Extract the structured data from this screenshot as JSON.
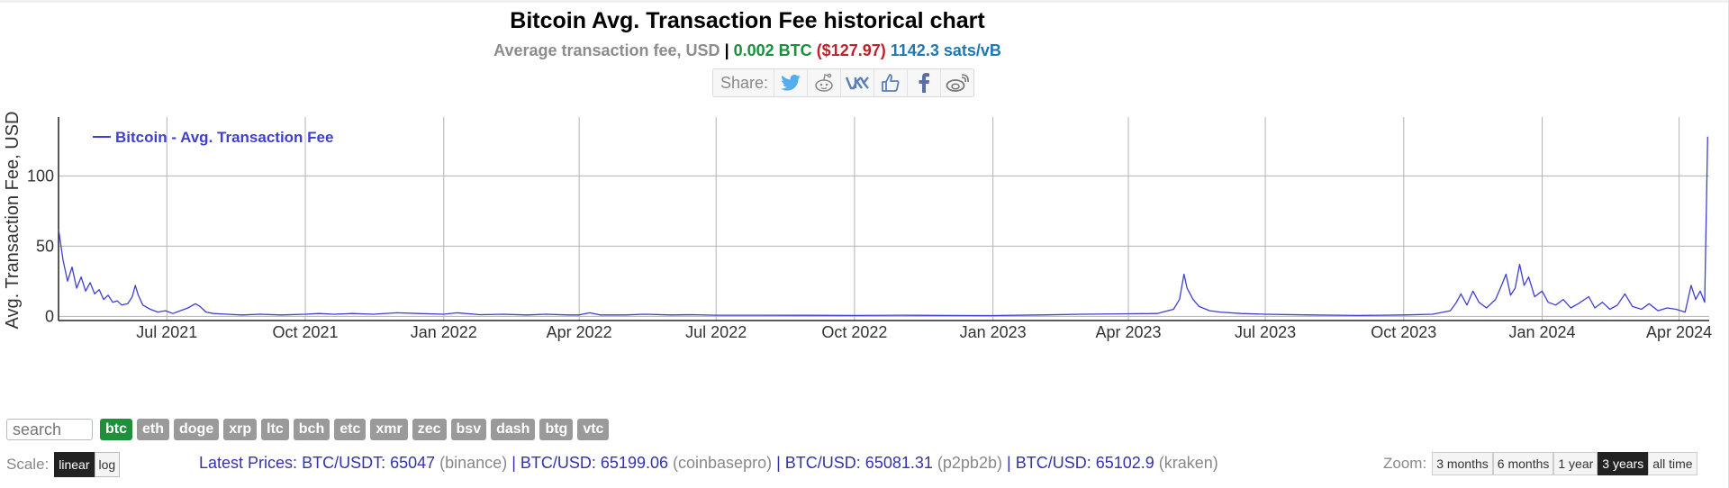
{
  "page": {
    "title": "Bitcoin Avg. Transaction Fee historical chart",
    "subtitle": {
      "label": "Average transaction fee, USD",
      "sep": "|",
      "btc": "0.002 BTC",
      "usd": "($127.97)",
      "sats": "1142.3 sats/vB"
    },
    "share_label": "Share:",
    "share_icons": [
      "twitter-icon",
      "reddit-icon",
      "vk-icon",
      "like-icon",
      "facebook-icon",
      "weibo-icon"
    ]
  },
  "chart_data": {
    "type": "line",
    "title": "",
    "xlabel": "",
    "ylabel": "Avg. Transaction Fee, USD",
    "legend": "Bitcoin - Avg. Transaction Fee",
    "legend_position": "top-left",
    "grid": true,
    "line_color": "#3f3fd0",
    "ylim": [
      -3,
      140
    ],
    "yticks": [
      0,
      50,
      100
    ],
    "x_range": [
      "2021-04-20",
      "2024-04-21"
    ],
    "xticks": [
      {
        "date": "2021-07-01",
        "label": "Jul 2021"
      },
      {
        "date": "2021-10-01",
        "label": "Oct 2021"
      },
      {
        "date": "2022-01-01",
        "label": "Jan 2022"
      },
      {
        "date": "2022-04-01",
        "label": "Apr 2022"
      },
      {
        "date": "2022-07-01",
        "label": "Jul 2022"
      },
      {
        "date": "2022-10-01",
        "label": "Oct 2022"
      },
      {
        "date": "2023-01-01",
        "label": "Jan 2023"
      },
      {
        "date": "2023-04-01",
        "label": "Apr 2023"
      },
      {
        "date": "2023-07-01",
        "label": "Jul 2023"
      },
      {
        "date": "2023-10-01",
        "label": "Oct 2023"
      },
      {
        "date": "2024-01-01",
        "label": "Jan 2024"
      },
      {
        "date": "2024-04-01",
        "label": "Apr 2024"
      }
    ],
    "series": [
      {
        "name": "Bitcoin - Avg. Transaction Fee",
        "points": [
          [
            "2021-04-20",
            62
          ],
          [
            "2021-04-23",
            40
          ],
          [
            "2021-04-26",
            25
          ],
          [
            "2021-04-29",
            35
          ],
          [
            "2021-05-02",
            20
          ],
          [
            "2021-05-05",
            28
          ],
          [
            "2021-05-08",
            18
          ],
          [
            "2021-05-11",
            24
          ],
          [
            "2021-05-14",
            16
          ],
          [
            "2021-05-17",
            19
          ],
          [
            "2021-05-20",
            12
          ],
          [
            "2021-05-23",
            15
          ],
          [
            "2021-05-26",
            10
          ],
          [
            "2021-05-29",
            11
          ],
          [
            "2021-06-01",
            8
          ],
          [
            "2021-06-05",
            9
          ],
          [
            "2021-06-08",
            14
          ],
          [
            "2021-06-10",
            22
          ],
          [
            "2021-06-12",
            15
          ],
          [
            "2021-06-15",
            8
          ],
          [
            "2021-06-20",
            5
          ],
          [
            "2021-06-25",
            3
          ],
          [
            "2021-06-30",
            4
          ],
          [
            "2021-07-05",
            2
          ],
          [
            "2021-07-10",
            4
          ],
          [
            "2021-07-15",
            6
          ],
          [
            "2021-07-20",
            9
          ],
          [
            "2021-07-23",
            7
          ],
          [
            "2021-07-27",
            3
          ],
          [
            "2021-08-01",
            2
          ],
          [
            "2021-08-10",
            1.5
          ],
          [
            "2021-08-20",
            1
          ],
          [
            "2021-09-01",
            1.5
          ],
          [
            "2021-09-15",
            1
          ],
          [
            "2021-10-01",
            1.5
          ],
          [
            "2021-10-10",
            2
          ],
          [
            "2021-10-20",
            1.5
          ],
          [
            "2021-11-01",
            2
          ],
          [
            "2021-11-15",
            1.5
          ],
          [
            "2021-12-01",
            2.5
          ],
          [
            "2021-12-15",
            2
          ],
          [
            "2022-01-01",
            1.5
          ],
          [
            "2022-01-10",
            2.5
          ],
          [
            "2022-01-25",
            1.2
          ],
          [
            "2022-02-10",
            1.5
          ],
          [
            "2022-02-25",
            1
          ],
          [
            "2022-03-10",
            1.5
          ],
          [
            "2022-03-25",
            1
          ],
          [
            "2022-04-01",
            1
          ],
          [
            "2022-04-08",
            2.5
          ],
          [
            "2022-04-15",
            1
          ],
          [
            "2022-05-01",
            1
          ],
          [
            "2022-05-15",
            1.5
          ],
          [
            "2022-06-01",
            1
          ],
          [
            "2022-06-15",
            1.2
          ],
          [
            "2022-07-01",
            0.8
          ],
          [
            "2022-08-01",
            0.8
          ],
          [
            "2022-09-01",
            0.7
          ],
          [
            "2022-10-01",
            0.6
          ],
          [
            "2022-11-01",
            0.8
          ],
          [
            "2022-12-01",
            0.6
          ],
          [
            "2023-01-01",
            0.5
          ],
          [
            "2023-02-01",
            1
          ],
          [
            "2023-03-01",
            1.5
          ],
          [
            "2023-04-01",
            1.8
          ],
          [
            "2023-04-20",
            2
          ],
          [
            "2023-05-01",
            5
          ],
          [
            "2023-05-05",
            12
          ],
          [
            "2023-05-08",
            30
          ],
          [
            "2023-05-10",
            20
          ],
          [
            "2023-05-14",
            12
          ],
          [
            "2023-05-18",
            7
          ],
          [
            "2023-05-25",
            4
          ],
          [
            "2023-06-01",
            3
          ],
          [
            "2023-06-15",
            2
          ],
          [
            "2023-07-01",
            1.5
          ],
          [
            "2023-08-01",
            1
          ],
          [
            "2023-09-01",
            0.6
          ],
          [
            "2023-10-01",
            1
          ],
          [
            "2023-10-20",
            1.5
          ],
          [
            "2023-11-01",
            4
          ],
          [
            "2023-11-05",
            10
          ],
          [
            "2023-11-08",
            16
          ],
          [
            "2023-11-12",
            8
          ],
          [
            "2023-11-16",
            18
          ],
          [
            "2023-11-20",
            10
          ],
          [
            "2023-11-25",
            6
          ],
          [
            "2023-12-01",
            12
          ],
          [
            "2023-12-05",
            22
          ],
          [
            "2023-12-08",
            30
          ],
          [
            "2023-12-11",
            15
          ],
          [
            "2023-12-14",
            20
          ],
          [
            "2023-12-17",
            37
          ],
          [
            "2023-12-20",
            22
          ],
          [
            "2023-12-23",
            28
          ],
          [
            "2023-12-27",
            14
          ],
          [
            "2024-01-01",
            18
          ],
          [
            "2024-01-05",
            10
          ],
          [
            "2024-01-10",
            8
          ],
          [
            "2024-01-15",
            12
          ],
          [
            "2024-01-20",
            6
          ],
          [
            "2024-01-25",
            9
          ],
          [
            "2024-02-01",
            14
          ],
          [
            "2024-02-05",
            6
          ],
          [
            "2024-02-10",
            10
          ],
          [
            "2024-02-15",
            5
          ],
          [
            "2024-02-20",
            8
          ],
          [
            "2024-02-25",
            16
          ],
          [
            "2024-03-01",
            7
          ],
          [
            "2024-03-07",
            5
          ],
          [
            "2024-03-12",
            9
          ],
          [
            "2024-03-18",
            4
          ],
          [
            "2024-03-24",
            6
          ],
          [
            "2024-03-30",
            5
          ],
          [
            "2024-04-05",
            3
          ],
          [
            "2024-04-09",
            22
          ],
          [
            "2024-04-12",
            12
          ],
          [
            "2024-04-15",
            18
          ],
          [
            "2024-04-18",
            10
          ],
          [
            "2024-04-20",
            128
          ]
        ]
      }
    ]
  },
  "controls": {
    "search_placeholder": "search",
    "coins": [
      "btc",
      "eth",
      "doge",
      "xrp",
      "ltc",
      "bch",
      "etc",
      "xmr",
      "zec",
      "bsv",
      "dash",
      "btg",
      "vtc"
    ],
    "active_coin": "btc",
    "scale_label": "Scale:",
    "scale_linear": "linear",
    "scale_log": "log",
    "zoom_label": "Zoom:",
    "zoom_3m": "3 months",
    "zoom_6m": "6 months",
    "zoom_1y": "1 year",
    "zoom_3y": "3 years",
    "zoom_all": "all time"
  },
  "prices": {
    "label": "Latest Prices:",
    "items": [
      {
        "pair": "BTC/USDT: 65047",
        "exchange": "(binance)"
      },
      {
        "pair": "BTC/USD: 65199.06",
        "exchange": "(coinbasepro)"
      },
      {
        "pair": "BTC/USD: 65081.31",
        "exchange": "(p2pb2b)"
      },
      {
        "pair": "BTC/USD: 65102.9",
        "exchange": "(kraken)"
      }
    ],
    "sep": "|"
  }
}
